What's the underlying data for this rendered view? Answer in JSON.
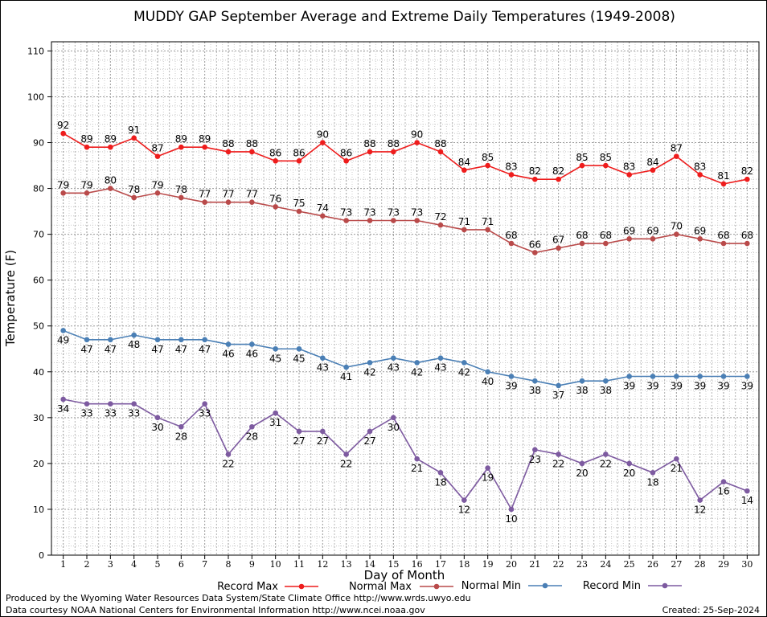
{
  "chart_data": {
    "type": "line",
    "title": "MUDDY GAP September Average and Extreme Daily Temperatures (1949-2008)",
    "xlabel": "Day of Month",
    "ylabel": "Temperature (F)",
    "ylim": [
      0,
      112
    ],
    "yticks": [
      0,
      10,
      20,
      30,
      40,
      50,
      60,
      70,
      80,
      90,
      100,
      110
    ],
    "xlim": [
      0.5,
      30.5
    ],
    "categories": [
      1,
      2,
      3,
      4,
      5,
      6,
      7,
      8,
      9,
      10,
      11,
      12,
      13,
      14,
      15,
      16,
      17,
      18,
      19,
      20,
      21,
      22,
      23,
      24,
      25,
      26,
      27,
      28,
      29,
      30
    ],
    "grid": true,
    "legend_position": "bottom",
    "series": [
      {
        "name": "Record Max",
        "color": "#ee1c1c",
        "label_pos": "above",
        "values": [
          92,
          89,
          89,
          91,
          87,
          89,
          89,
          88,
          88,
          86,
          86,
          90,
          86,
          88,
          88,
          90,
          88,
          84,
          85,
          83,
          82,
          82,
          85,
          85,
          83,
          84,
          87,
          83,
          81,
          82
        ]
      },
      {
        "name": "Normal Max",
        "color": "#b94a4a",
        "label_pos": "above",
        "values": [
          79,
          79,
          80,
          78,
          79,
          78,
          77,
          77,
          77,
          76,
          75,
          74,
          73,
          73,
          73,
          73,
          72,
          71,
          71,
          68,
          66,
          67,
          68,
          68,
          69,
          69,
          70,
          69,
          68,
          68
        ]
      },
      {
        "name": "Normal Min",
        "color": "#4a7fb5",
        "label_pos": "below",
        "values": [
          49,
          47,
          47,
          48,
          47,
          47,
          47,
          46,
          46,
          45,
          45,
          43,
          41,
          42,
          43,
          42,
          43,
          42,
          40,
          39,
          38,
          37,
          38,
          38,
          39,
          39,
          39,
          39,
          39,
          39
        ]
      },
      {
        "name": "Record Min",
        "color": "#7d5aa0",
        "label_pos": "below",
        "values": [
          34,
          33,
          33,
          33,
          30,
          28,
          33,
          22,
          28,
          31,
          27,
          27,
          22,
          27,
          30,
          21,
          18,
          12,
          19,
          10,
          23,
          22,
          20,
          22,
          20,
          18,
          21,
          12,
          16,
          14
        ]
      }
    ]
  },
  "footer": {
    "produced_by": "Produced by the Wyoming Water Resources Data System/State Climate Office http://www.wrds.uwyo.edu",
    "courtesy": "Data courtesy NOAA National Centers for Environmental Information http://www.ncei.noaa.gov",
    "created": "Created:  25-Sep-2024"
  }
}
